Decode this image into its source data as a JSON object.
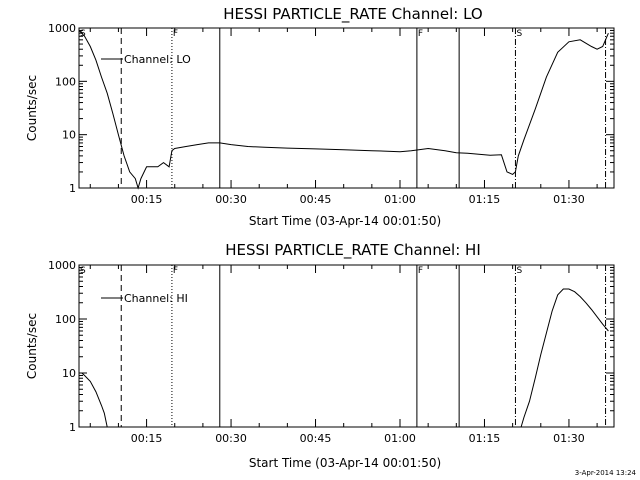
{
  "timestamp": "3-Apr-2014 13:24",
  "chart_data": [
    {
      "type": "line",
      "title": "HESSI PARTICLE_RATE Channel: LO",
      "xlabel": "Start Time (03-Apr-14 00:01:50)",
      "ylabel": "Counts/sec",
      "yscale": "log",
      "ylim": [
        1,
        1000
      ],
      "xlim_minutes": [
        3,
        98
      ],
      "xticks": [
        {
          "label": "00:15",
          "t": 15
        },
        {
          "label": "00:30",
          "t": 30
        },
        {
          "label": "00:45",
          "t": 45
        },
        {
          "label": "01:00",
          "t": 60
        },
        {
          "label": "01:15",
          "t": 75
        },
        {
          "label": "01:30",
          "t": 90
        }
      ],
      "yticks": [
        {
          "label": "1",
          "v": 1
        },
        {
          "label": "10",
          "v": 10
        },
        {
          "label": "100",
          "v": 100
        },
        {
          "label": "1000",
          "v": 1000
        }
      ],
      "legend": {
        "label": "Channel: LO",
        "placement": "top-left"
      },
      "series": [
        {
          "name": "Channel: LO",
          "x": [
            3,
            4,
            5,
            6,
            7,
            8,
            9,
            10,
            11,
            12,
            13,
            13.5,
            14,
            15,
            16,
            17,
            18,
            19,
            19.5,
            20,
            22,
            24,
            26,
            28,
            30,
            33,
            36,
            40,
            45,
            50,
            55,
            60,
            62,
            65,
            68,
            70,
            72,
            74,
            76,
            78,
            79,
            80,
            80.5,
            81,
            82,
            84,
            86,
            88,
            90,
            92,
            94,
            95,
            96,
            97
          ],
          "y": [
            900,
            700,
            450,
            250,
            120,
            60,
            25,
            10,
            4,
            2,
            1.5,
            1,
            1.5,
            2.5,
            2.5,
            2.5,
            3,
            2.5,
            5,
            5.5,
            6,
            6.5,
            7,
            7,
            6.5,
            6,
            5.8,
            5.6,
            5.4,
            5.2,
            5,
            4.8,
            5,
            5.5,
            5,
            4.6,
            4.5,
            4.3,
            4.1,
            4.2,
            2,
            1.8,
            2,
            4,
            8,
            30,
            120,
            350,
            550,
            600,
            450,
            400,
            450,
            800
          ]
        }
      ],
      "vlines": [
        {
          "t": 10.5,
          "style": "dashed"
        },
        {
          "t": 19.5,
          "style": "dotted"
        },
        {
          "t": 28,
          "style": "solid"
        },
        {
          "t": 63,
          "style": "solid"
        },
        {
          "t": 70.5,
          "style": "solid"
        },
        {
          "t": 80.5,
          "style": "dash-dot"
        },
        {
          "t": 96.5,
          "style": "dash-dot"
        }
      ],
      "annotations": [
        {
          "t": 3,
          "text": "S"
        },
        {
          "t": 19.5,
          "text": "F"
        },
        {
          "t": 63,
          "text": "F"
        },
        {
          "t": 80.5,
          "text": "S"
        }
      ]
    },
    {
      "type": "line",
      "title": "HESSI PARTICLE_RATE Channel: HI",
      "xlabel": "Start Time (03-Apr-14 00:01:50)",
      "ylabel": "Counts/sec",
      "yscale": "log",
      "ylim": [
        1,
        1000
      ],
      "xlim_minutes": [
        3,
        98
      ],
      "xticks": [
        {
          "label": "00:15",
          "t": 15
        },
        {
          "label": "00:30",
          "t": 30
        },
        {
          "label": "00:45",
          "t": 45
        },
        {
          "label": "01:00",
          "t": 60
        },
        {
          "label": "01:15",
          "t": 75
        },
        {
          "label": "01:30",
          "t": 90
        }
      ],
      "yticks": [
        {
          "label": "1",
          "v": 1
        },
        {
          "label": "10",
          "v": 10
        },
        {
          "label": "100",
          "v": 100
        },
        {
          "label": "1000",
          "v": 1000
        }
      ],
      "legend": {
        "label": "Channel: HI",
        "placement": "top-left"
      },
      "series": [
        {
          "name": "Channel: HI",
          "x": [
            3,
            3.5,
            4,
            5,
            6,
            7,
            7.5,
            8
          ],
          "y": [
            10,
            10,
            9,
            7,
            4.5,
            2.5,
            1.8,
            1
          ]
        },
        {
          "name": "Channel: HI",
          "x": [
            81.5,
            82,
            83,
            84,
            85,
            86,
            87,
            88,
            89,
            90,
            91,
            92,
            93,
            94,
            95,
            96,
            97
          ],
          "y": [
            1,
            1.5,
            3,
            8,
            22,
            55,
            140,
            280,
            360,
            360,
            320,
            260,
            200,
            150,
            110,
            80,
            60
          ]
        }
      ],
      "vlines": [
        {
          "t": 10.5,
          "style": "dashed"
        },
        {
          "t": 19.5,
          "style": "dotted"
        },
        {
          "t": 28,
          "style": "solid"
        },
        {
          "t": 63,
          "style": "solid"
        },
        {
          "t": 70.5,
          "style": "solid"
        },
        {
          "t": 80.5,
          "style": "dash-dot"
        },
        {
          "t": 96.5,
          "style": "dash-dot"
        }
      ],
      "annotations": [
        {
          "t": 3,
          "text": "S"
        },
        {
          "t": 19.5,
          "text": "F"
        },
        {
          "t": 63,
          "text": "F"
        },
        {
          "t": 80.5,
          "text": "S"
        }
      ]
    }
  ]
}
